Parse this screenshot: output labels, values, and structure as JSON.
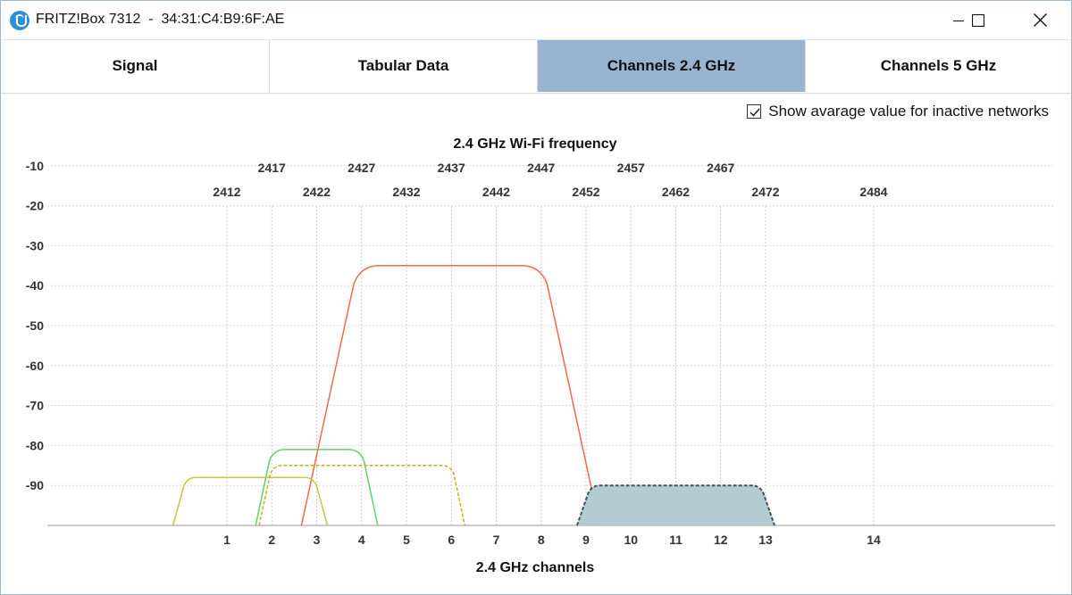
{
  "window": {
    "title": "FRITZ!Box 7312  -  34:31:C4:B9:6F:AE",
    "controls": [
      "minimize",
      "maximize",
      "close"
    ]
  },
  "tabs": [
    {
      "label": "Signal",
      "active": false
    },
    {
      "label": "Tabular Data",
      "active": false
    },
    {
      "label": "Channels 2.4 GHz",
      "active": true
    },
    {
      "label": "Channels 5 GHz",
      "active": false
    }
  ],
  "options": {
    "show_average_label": "Show avarage value for inactive networks",
    "show_average_checked": true
  },
  "chart_data": {
    "type": "area",
    "title": "2.4 GHz Wi-Fi frequency",
    "xlabel": "2.4 GHz channels",
    "ylabel": "",
    "ylim": [
      -100,
      0
    ],
    "y_ticks": [
      -10,
      -20,
      -30,
      -40,
      -50,
      -60,
      -70,
      -80,
      -90
    ],
    "channels": [
      {
        "ch": "1",
        "freq": "2412"
      },
      {
        "ch": "2",
        "freq": "2417"
      },
      {
        "ch": "3",
        "freq": "2422"
      },
      {
        "ch": "4",
        "freq": "2427"
      },
      {
        "ch": "5",
        "freq": "2432"
      },
      {
        "ch": "6",
        "freq": "2437"
      },
      {
        "ch": "7",
        "freq": "2442"
      },
      {
        "ch": "8",
        "freq": "2447"
      },
      {
        "ch": "9",
        "freq": "2452"
      },
      {
        "ch": "10",
        "freq": "2457"
      },
      {
        "ch": "11",
        "freq": "2462"
      },
      {
        "ch": "12",
        "freq": "2467"
      },
      {
        "ch": "13",
        "freq": "2472"
      },
      {
        "ch": "14",
        "freq": "2484"
      }
    ],
    "grid": true,
    "series": [
      {
        "color": "#ee6a48",
        "x_start": 2.66,
        "x_end": 9.3,
        "value": -35,
        "style": "solid",
        "fill": false
      },
      {
        "color": "#5ed06a",
        "x_start": 1.64,
        "x_end": 4.36,
        "value": -81,
        "style": "solid",
        "fill": false
      },
      {
        "color": "#c8c83a",
        "x_start": -0.2,
        "x_end": 3.24,
        "value": -88,
        "style": "solid",
        "fill": false
      },
      {
        "color": "#c4b21a",
        "x_start": 1.72,
        "x_end": 6.3,
        "value": -85,
        "style": "dashed",
        "fill": false
      },
      {
        "color": "#3f5466",
        "fill_color": "#b4cbd4",
        "x_start": 8.8,
        "x_end": 13.2,
        "value": -90,
        "style": "dashed",
        "fill": true
      }
    ]
  }
}
